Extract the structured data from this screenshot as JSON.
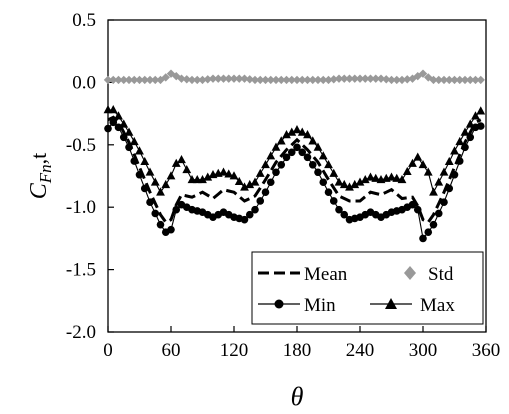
{
  "chart_data": {
    "type": "line",
    "xlabel": "θ",
    "ylabel": {
      "main": "C",
      "sub": "Fn",
      "suffix": ",t"
    },
    "xlim": [
      0,
      360
    ],
    "ylim": [
      -2.0,
      0.5
    ],
    "xticks": [
      "0",
      "60",
      "120",
      "180",
      "240",
      "300",
      "360"
    ],
    "yticks": [
      "0.5",
      "0.0",
      "-0.5",
      "-1.0",
      "-1.5",
      "-2.0"
    ],
    "grid": false,
    "legend_position": "bottom-right",
    "colors": {
      "mean": "#000000",
      "std": "#999999",
      "min": "#000000",
      "max": "#000000"
    },
    "key_x": [
      0,
      5,
      10,
      20,
      30,
      40,
      50,
      55,
      60,
      65,
      70,
      80,
      90,
      100,
      110,
      120,
      130,
      140,
      150,
      160,
      170,
      180,
      190,
      200,
      210,
      220,
      230,
      240,
      250,
      260,
      270,
      280,
      290,
      295,
      300,
      305,
      310,
      320,
      330,
      340,
      350,
      355
    ],
    "series": [
      {
        "name": "Mean",
        "style": "dashed",
        "key_y": [
          -0.3,
          -0.28,
          -0.32,
          -0.48,
          -0.68,
          -0.88,
          -1.06,
          -1.12,
          -1.1,
          -0.98,
          -0.9,
          -0.92,
          -0.88,
          -0.93,
          -0.86,
          -0.88,
          -0.95,
          -0.91,
          -0.78,
          -0.64,
          -0.54,
          -0.46,
          -0.54,
          -0.64,
          -0.78,
          -0.91,
          -0.95,
          -0.95,
          -0.88,
          -0.9,
          -0.86,
          -0.93,
          -0.92,
          -0.99,
          -1.1,
          -1.12,
          -1.06,
          -0.88,
          -0.68,
          -0.48,
          -0.32,
          -0.3
        ]
      },
      {
        "name": "Std",
        "style": "marker-diamond",
        "key_y": [
          0.02,
          0.02,
          0.02,
          0.02,
          0.02,
          0.02,
          0.02,
          0.04,
          0.07,
          0.05,
          0.03,
          0.02,
          0.02,
          0.03,
          0.03,
          0.03,
          0.03,
          0.02,
          0.02,
          0.02,
          0.02,
          0.02,
          0.02,
          0.02,
          0.02,
          0.03,
          0.03,
          0.03,
          0.03,
          0.03,
          0.02,
          0.02,
          0.03,
          0.05,
          0.07,
          0.04,
          0.02,
          0.02,
          0.02,
          0.02,
          0.02,
          0.02
        ]
      },
      {
        "name": "Min",
        "style": "marker-circle",
        "key_y": [
          -0.37,
          -0.32,
          -0.36,
          -0.52,
          -0.74,
          -0.96,
          -1.14,
          -1.2,
          -1.18,
          -1.02,
          -0.98,
          -1.02,
          -1.04,
          -1.08,
          -1.04,
          -1.08,
          -1.1,
          -1.02,
          -0.88,
          -0.72,
          -0.6,
          -0.52,
          -0.6,
          -0.72,
          -0.88,
          -1.02,
          -1.1,
          -1.08,
          -1.04,
          -1.08,
          -1.04,
          -1.02,
          -0.98,
          -1.02,
          -1.25,
          -1.2,
          -1.14,
          -0.96,
          -0.74,
          -0.52,
          -0.36,
          -0.35
        ]
      },
      {
        "name": "Max",
        "style": "marker-triangle",
        "key_y": [
          -0.22,
          -0.22,
          -0.27,
          -0.4,
          -0.55,
          -0.72,
          -0.88,
          -0.82,
          -0.75,
          -0.65,
          -0.62,
          -0.78,
          -0.78,
          -0.74,
          -0.72,
          -0.75,
          -0.84,
          -0.8,
          -0.66,
          -0.52,
          -0.42,
          -0.38,
          -0.42,
          -0.52,
          -0.66,
          -0.8,
          -0.84,
          -0.8,
          -0.76,
          -0.78,
          -0.76,
          -0.78,
          -0.65,
          -0.6,
          -0.66,
          -0.72,
          -0.88,
          -0.72,
          -0.55,
          -0.4,
          -0.27,
          -0.23
        ]
      }
    ]
  }
}
